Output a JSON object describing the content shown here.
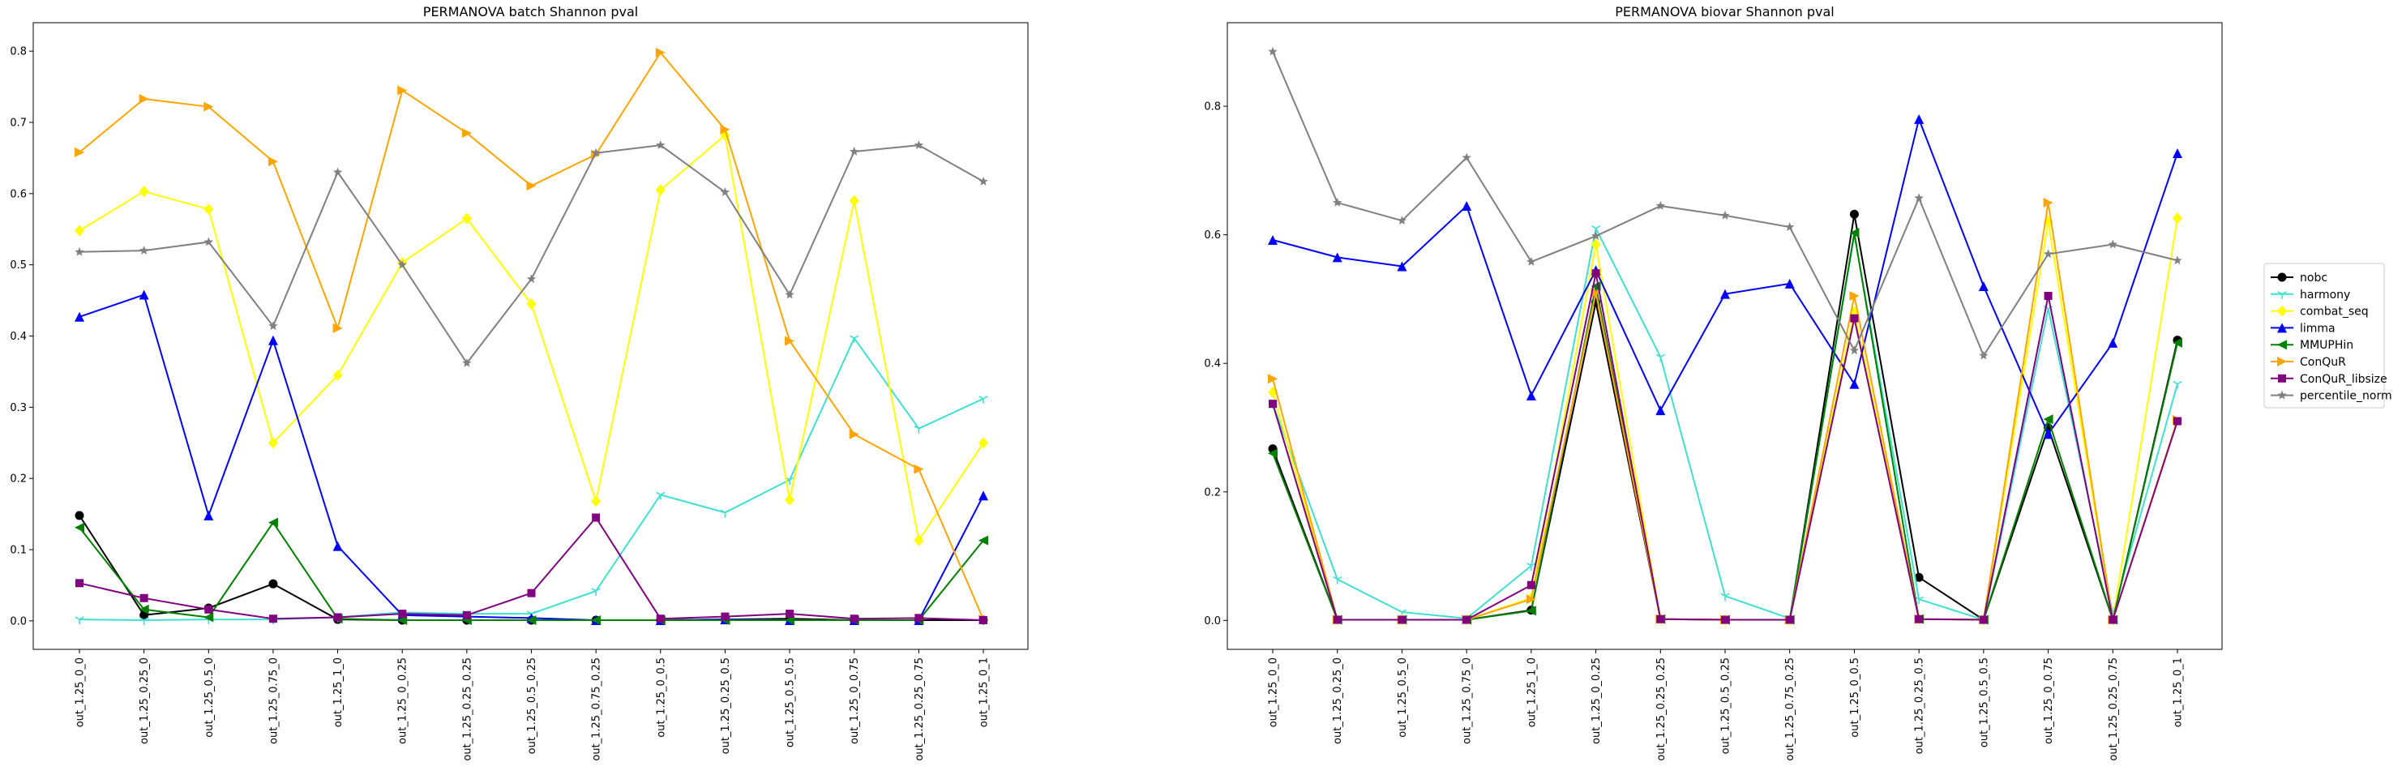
{
  "chart_data": [
    {
      "type": "line",
      "title": "PERMANOVA batch Shannon pval",
      "xlabel": "",
      "ylabel": "",
      "categories": [
        "out_1.25_0_0",
        "out_1.25_0.25_0",
        "out_1.25_0.5_0",
        "out_1.25_0.75_0",
        "out_1.25_1_0",
        "out_1.25_0_0.25",
        "out_1.25_0.25_0.25",
        "out_1.25_0.5_0.25",
        "out_1.25_0.75_0.25",
        "out_1.25_0_0.5",
        "out_1.25_0.25_0.5",
        "out_1.25_0.5_0.5",
        "out_1.25_0_0.75",
        "out_1.25_0.25_0.75",
        "out_1.25_0_1"
      ],
      "yticks": [
        "0.0",
        "0.1",
        "0.2",
        "0.3",
        "0.4",
        "0.5",
        "0.6",
        "0.7",
        "0.8"
      ],
      "ylim": [
        -0.04,
        0.84
      ],
      "grid": false,
      "series": [
        {
          "name": "nobc",
          "color": "#000000",
          "marker": "circle",
          "values": [
            0.148,
            0.008,
            0.018,
            0.052,
            0.002,
            0.001,
            0.001,
            0.001,
            0.001,
            0.001,
            0.002,
            0.003,
            0.001,
            0.001,
            0.001
          ]
        },
        {
          "name": "harmony",
          "color": "#40e0d0",
          "marker": "tri",
          "values": [
            0.002,
            0.001,
            0.002,
            0.002,
            0.005,
            0.012,
            0.01,
            0.01,
            0.042,
            0.177,
            0.152,
            0.198,
            0.397,
            0.27,
            0.312
          ]
        },
        {
          "name": "combat_seq",
          "color": "#ffff00",
          "marker": "diamond",
          "values": [
            0.548,
            0.603,
            0.578,
            0.25,
            0.345,
            0.503,
            0.565,
            0.445,
            0.168,
            0.605,
            0.682,
            0.17,
            0.59,
            0.113,
            0.25
          ]
        },
        {
          "name": "limma",
          "color": "#0000ff",
          "marker": "triangle-up",
          "values": [
            0.427,
            0.458,
            0.148,
            0.394,
            0.105,
            0.008,
            0.006,
            0.004,
            0.001,
            0.001,
            0.002,
            0.001,
            0.001,
            0.001,
            0.176
          ]
        },
        {
          "name": "MMUPHin",
          "color": "#008000",
          "marker": "triangle-left",
          "values": [
            0.131,
            0.016,
            0.005,
            0.138,
            0.003,
            0.001,
            0.001,
            0.001,
            0.001,
            0.001,
            0.001,
            0.001,
            0.001,
            0.001,
            0.113
          ]
        },
        {
          "name": "ConQuR",
          "color": "#ffa500",
          "marker": "triangle-right",
          "values": [
            0.658,
            0.733,
            0.722,
            0.645,
            0.411,
            0.745,
            0.685,
            0.611,
            0.655,
            0.798,
            0.69,
            0.393,
            0.262,
            0.213,
            0.002
          ]
        },
        {
          "name": "ConQuR_libsize",
          "color": "#800080",
          "marker": "square",
          "values": [
            0.053,
            0.032,
            0.016,
            0.003,
            0.005,
            0.01,
            0.008,
            0.039,
            0.145,
            0.003,
            0.006,
            0.01,
            0.003,
            0.004,
            0.001
          ]
        },
        {
          "name": "percentile_norm",
          "color": "#808080",
          "marker": "star",
          "values": [
            0.518,
            0.52,
            0.532,
            0.414,
            0.63,
            0.5,
            0.362,
            0.48,
            0.657,
            0.668,
            0.602,
            0.458,
            0.659,
            0.668,
            0.617
          ]
        }
      ]
    },
    {
      "type": "line",
      "title": "PERMANOVA biovar Shannon pval",
      "xlabel": "",
      "ylabel": "",
      "categories": [
        "out_1.25_0_0",
        "out_1.25_0.25_0",
        "out_1.25_0.5_0",
        "out_1.25_0.75_0",
        "out_1.25_1_0",
        "out_1.25_0_0.25",
        "out_1.25_0.25_0.25",
        "out_1.25_0.5_0.25",
        "out_1.25_0.75_0.25",
        "out_1.25_0_0.5",
        "out_1.25_0.25_0.5",
        "out_1.25_0.5_0.5",
        "out_1.25_0_0.75",
        "out_1.25_0.25_0.75",
        "out_1.25_0_1"
      ],
      "yticks": [
        "0.0",
        "0.2",
        "0.4",
        "0.6",
        "0.8"
      ],
      "ylim": [
        -0.045,
        0.93
      ],
      "grid": false,
      "legend": "right, outside",
      "series": [
        {
          "name": "nobc",
          "color": "#000000",
          "marker": "circle",
          "values": [
            0.267,
            0.001,
            0.001,
            0.001,
            0.016,
            0.495,
            0.002,
            0.001,
            0.001,
            0.632,
            0.067,
            0.001,
            0.3,
            0.001,
            0.436
          ]
        },
        {
          "name": "harmony",
          "color": "#40e0d0",
          "marker": "tri",
          "values": [
            0.337,
            0.064,
            0.013,
            0.003,
            0.085,
            0.61,
            0.41,
            0.038,
            0.003,
            0.6,
            0.033,
            0.001,
            0.485,
            0.011,
            0.368
          ]
        },
        {
          "name": "combat_seq",
          "color": "#ffff00",
          "marker": "diamond",
          "values": [
            0.355,
            0.001,
            0.001,
            0.001,
            0.035,
            0.585,
            0.002,
            0.001,
            0.001,
            0.48,
            0.002,
            0.001,
            0.62,
            0.001,
            0.626
          ]
        },
        {
          "name": "limma",
          "color": "#0000ff",
          "marker": "triangle-up",
          "values": [
            0.592,
            0.565,
            0.551,
            0.645,
            0.35,
            0.545,
            0.327,
            0.508,
            0.524,
            0.368,
            0.78,
            0.52,
            0.29,
            0.432,
            0.727
          ]
        },
        {
          "name": "MMUPHin",
          "color": "#008000",
          "marker": "triangle-left",
          "values": [
            0.26,
            0.001,
            0.001,
            0.001,
            0.015,
            0.52,
            0.002,
            0.001,
            0.001,
            0.603,
            0.002,
            0.001,
            0.313,
            0.001,
            0.432
          ]
        },
        {
          "name": "ConQuR",
          "color": "#ffa500",
          "marker": "triangle-right",
          "values": [
            0.376,
            0.001,
            0.001,
            0.001,
            0.033,
            0.51,
            0.002,
            0.001,
            0.001,
            0.505,
            0.002,
            0.001,
            0.65,
            0.001,
            0.312
          ]
        },
        {
          "name": "ConQuR_libsize",
          "color": "#800080",
          "marker": "square",
          "values": [
            0.337,
            0.001,
            0.001,
            0.001,
            0.055,
            0.54,
            0.002,
            0.001,
            0.001,
            0.47,
            0.002,
            0.001,
            0.505,
            0.001,
            0.31
          ]
        },
        {
          "name": "percentile_norm",
          "color": "#808080",
          "marker": "star",
          "values": [
            0.885,
            0.65,
            0.622,
            0.72,
            0.558,
            0.598,
            0.645,
            0.63,
            0.612,
            0.42,
            0.657,
            0.412,
            0.57,
            0.585,
            0.56
          ]
        }
      ]
    }
  ]
}
